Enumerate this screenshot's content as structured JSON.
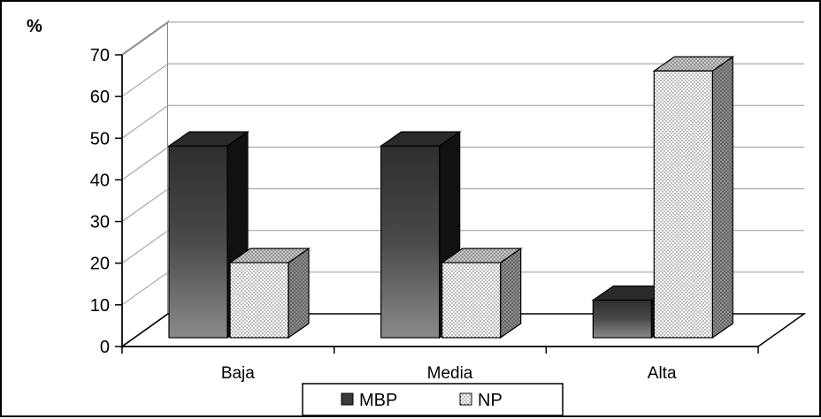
{
  "chart_data": {
    "type": "bar",
    "style": "3d-clustered-column",
    "ylabel": "%",
    "ylim": [
      0,
      70
    ],
    "yticks": [
      0,
      10,
      20,
      30,
      40,
      50,
      60,
      70
    ],
    "grid": true,
    "categories": [
      "Baja",
      "Media",
      "Alta"
    ],
    "series": [
      {
        "name": "MBP",
        "values": [
          46,
          46,
          9
        ],
        "color": "#3a3a3a"
      },
      {
        "name": "NP",
        "values": [
          18,
          18,
          64
        ],
        "color": "#ffffff",
        "pattern": "dotted"
      }
    ],
    "legend": "bottom"
  }
}
